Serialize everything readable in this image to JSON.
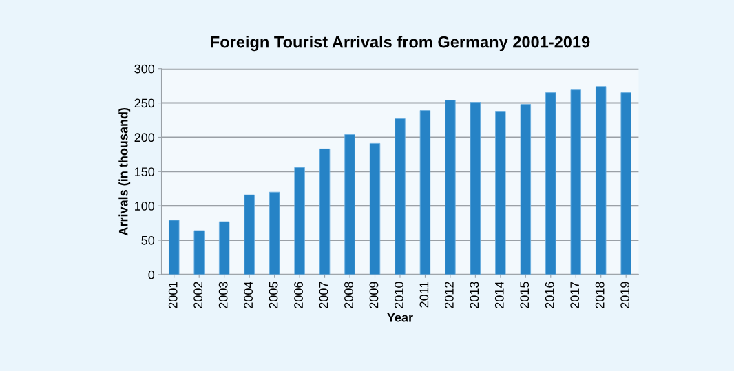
{
  "chart_data": {
    "type": "bar",
    "title": "Foreign Tourist Arrivals from Germany 2001-2019",
    "xlabel": "Year",
    "ylabel": "Arrivals (in thousand)",
    "categories": [
      "2001",
      "2002",
      "2003",
      "2004",
      "2005",
      "2006",
      "2007",
      "2008",
      "2009",
      "2010",
      "2011",
      "2012",
      "2013",
      "2014",
      "2015",
      "2016",
      "2017",
      "2018",
      "2019"
    ],
    "values": [
      79,
      64,
      77,
      116,
      120,
      156,
      183,
      204,
      191,
      227,
      239,
      254,
      251,
      238,
      248,
      265,
      269,
      274,
      265
    ],
    "color": "#2683c6",
    "ylim": [
      0,
      300
    ],
    "yticks": [
      0,
      50,
      100,
      150,
      200,
      250,
      300
    ],
    "grid": "y"
  }
}
